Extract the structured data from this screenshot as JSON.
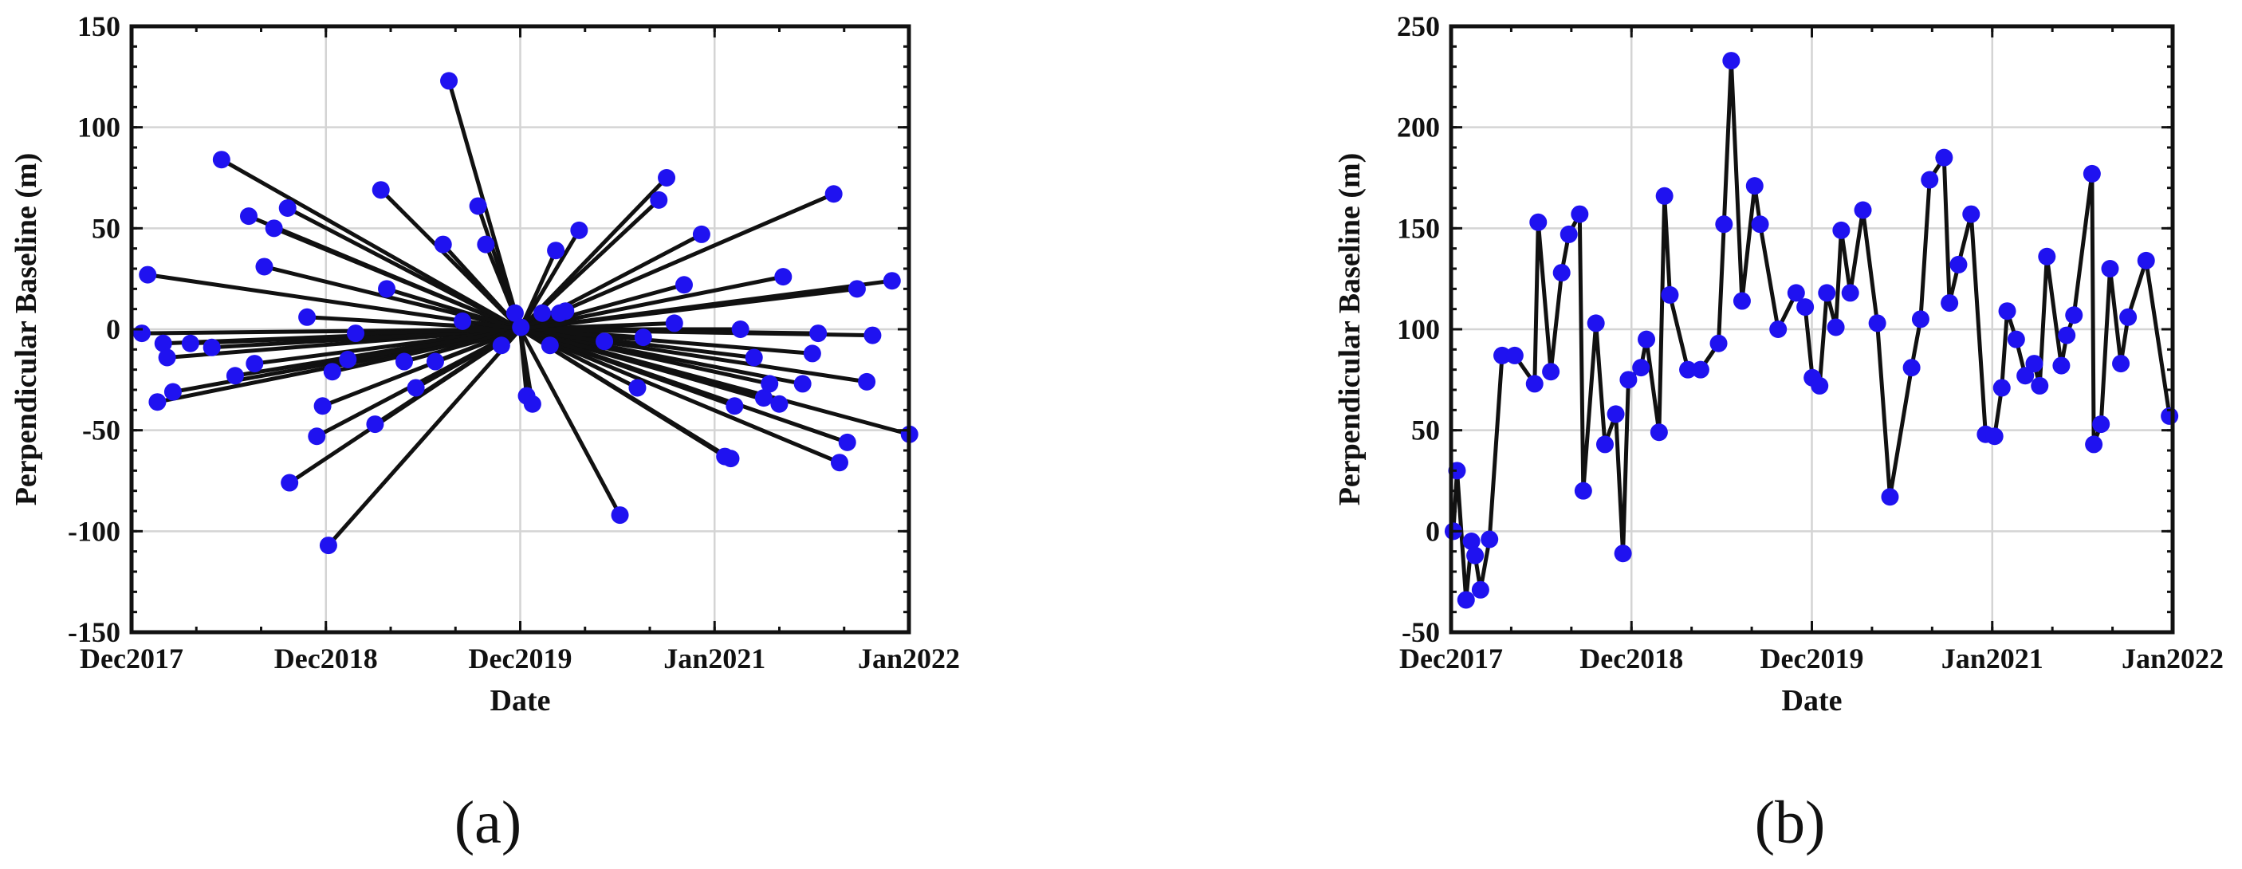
{
  "chart_data": [
    {
      "id": "a",
      "type": "line",
      "panel_label": "(a)",
      "title": "",
      "xlabel": "Date",
      "ylabel": "Perpendicular Baseline (m)",
      "xlim": [
        2017.917,
        2021.917
      ],
      "ylim": [
        -150,
        150
      ],
      "xticks": [
        {
          "value": 2017.917,
          "label": "Dec2017"
        },
        {
          "value": 2018.917,
          "label": "Dec2018"
        },
        {
          "value": 2019.917,
          "label": "Dec2019"
        },
        {
          "value": 2020.917,
          "label": "Jan2021"
        },
        {
          "value": 2021.917,
          "label": "Jan2022"
        }
      ],
      "yticks": [
        -150,
        -100,
        -50,
        0,
        50,
        100,
        150
      ],
      "grid": true,
      "master": {
        "x": 2019.917,
        "y": 0
      },
      "points": [
        [
          2017.97,
          -2
        ],
        [
          2018.0,
          27
        ],
        [
          2018.08,
          -7
        ],
        [
          2018.1,
          -14
        ],
        [
          2018.05,
          -36
        ],
        [
          2018.13,
          -31
        ],
        [
          2018.22,
          -7
        ],
        [
          2018.33,
          -9
        ],
        [
          2018.38,
          84
        ],
        [
          2018.45,
          -23
        ],
        [
          2018.52,
          56
        ],
        [
          2018.55,
          -17
        ],
        [
          2018.6,
          31
        ],
        [
          2018.65,
          50
        ],
        [
          2018.72,
          60
        ],
        [
          2018.73,
          -76
        ],
        [
          2018.82,
          6
        ],
        [
          2018.87,
          -53
        ],
        [
          2018.9,
          -38
        ],
        [
          2018.93,
          -107
        ],
        [
          2018.95,
          -21
        ],
        [
          2019.03,
          -15
        ],
        [
          2019.07,
          -2
        ],
        [
          2019.17,
          -47
        ],
        [
          2019.2,
          69
        ],
        [
          2019.23,
          20
        ],
        [
          2019.32,
          -16
        ],
        [
          2019.38,
          -29
        ],
        [
          2019.48,
          -16
        ],
        [
          2019.52,
          42
        ],
        [
          2019.55,
          123
        ],
        [
          2019.62,
          4
        ],
        [
          2019.7,
          61
        ],
        [
          2019.74,
          42
        ],
        [
          2019.82,
          -8
        ],
        [
          2019.89,
          8
        ],
        [
          2019.92,
          1
        ],
        [
          2019.95,
          -33
        ],
        [
          2019.98,
          -37
        ],
        [
          2020.03,
          8
        ],
        [
          2020.07,
          -8
        ],
        [
          2020.1,
          39
        ],
        [
          2020.12,
          8
        ],
        [
          2020.15,
          9
        ],
        [
          2020.22,
          49
        ],
        [
          2020.35,
          -6
        ],
        [
          2020.43,
          -92
        ],
        [
          2020.52,
          -29
        ],
        [
          2020.55,
          -4
        ],
        [
          2020.63,
          64
        ],
        [
          2020.67,
          75
        ],
        [
          2020.71,
          3
        ],
        [
          2020.76,
          22
        ],
        [
          2020.85,
          47
        ],
        [
          2020.97,
          -63
        ],
        [
          2021.0,
          -64
        ],
        [
          2021.02,
          -38
        ],
        [
          2021.05,
          0
        ],
        [
          2021.12,
          -14
        ],
        [
          2021.17,
          -34
        ],
        [
          2021.2,
          -27
        ],
        [
          2021.25,
          -37
        ],
        [
          2021.27,
          26
        ],
        [
          2021.37,
          -27
        ],
        [
          2021.42,
          -12
        ],
        [
          2021.45,
          -2
        ],
        [
          2021.53,
          67
        ],
        [
          2021.56,
          -66
        ],
        [
          2021.6,
          -56
        ],
        [
          2021.65,
          20
        ],
        [
          2021.7,
          -26
        ],
        [
          2021.73,
          -3
        ],
        [
          2021.83,
          24
        ],
        [
          2021.92,
          -52
        ]
      ]
    },
    {
      "id": "b",
      "type": "line",
      "panel_label": "(b)",
      "title": "",
      "xlabel": "Date",
      "ylabel": "Perpendicular Baseline (m)",
      "xlim": [
        2017.917,
        2021.917
      ],
      "ylim": [
        -50,
        250
      ],
      "xticks": [
        {
          "value": 2017.917,
          "label": "Dec2017"
        },
        {
          "value": 2018.917,
          "label": "Dec2018"
        },
        {
          "value": 2019.917,
          "label": "Dec2019"
        },
        {
          "value": 2020.917,
          "label": "Jan2021"
        },
        {
          "value": 2021.917,
          "label": "Jan2022"
        }
      ],
      "yticks": [
        -50,
        0,
        50,
        100,
        150,
        200,
        250
      ],
      "grid": true,
      "points": [
        [
          2017.93,
          0
        ],
        [
          2017.95,
          30
        ],
        [
          2018.0,
          -34
        ],
        [
          2018.03,
          -5
        ],
        [
          2018.05,
          -12
        ],
        [
          2018.08,
          -29
        ],
        [
          2018.13,
          -4
        ],
        [
          2018.2,
          87
        ],
        [
          2018.27,
          87
        ],
        [
          2018.38,
          73
        ],
        [
          2018.4,
          153
        ],
        [
          2018.47,
          79
        ],
        [
          2018.53,
          128
        ],
        [
          2018.57,
          147
        ],
        [
          2018.63,
          157
        ],
        [
          2018.65,
          20
        ],
        [
          2018.72,
          103
        ],
        [
          2018.77,
          43
        ],
        [
          2018.83,
          58
        ],
        [
          2018.87,
          -11
        ],
        [
          2018.9,
          75
        ],
        [
          2018.97,
          81
        ],
        [
          2019.0,
          95
        ],
        [
          2019.07,
          49
        ],
        [
          2019.1,
          166
        ],
        [
          2019.13,
          117
        ],
        [
          2019.23,
          80
        ],
        [
          2019.3,
          80
        ],
        [
          2019.4,
          93
        ],
        [
          2019.43,
          152
        ],
        [
          2019.47,
          233
        ],
        [
          2019.53,
          114
        ],
        [
          2019.6,
          171
        ],
        [
          2019.63,
          152
        ],
        [
          2019.73,
          100
        ],
        [
          2019.83,
          118
        ],
        [
          2019.88,
          111
        ],
        [
          2019.92,
          76
        ],
        [
          2019.96,
          72
        ],
        [
          2020.0,
          118
        ],
        [
          2020.05,
          101
        ],
        [
          2020.08,
          149
        ],
        [
          2020.13,
          118
        ],
        [
          2020.2,
          159
        ],
        [
          2020.28,
          103
        ],
        [
          2020.35,
          17
        ],
        [
          2020.47,
          81
        ],
        [
          2020.52,
          105
        ],
        [
          2020.57,
          174
        ],
        [
          2020.65,
          185
        ],
        [
          2020.68,
          113
        ],
        [
          2020.73,
          132
        ],
        [
          2020.8,
          157
        ],
        [
          2020.88,
          48
        ],
        [
          2020.93,
          47
        ],
        [
          2020.97,
          71
        ],
        [
          2021.0,
          109
        ],
        [
          2021.05,
          95
        ],
        [
          2021.1,
          77
        ],
        [
          2021.15,
          83
        ],
        [
          2021.18,
          72
        ],
        [
          2021.22,
          136
        ],
        [
          2021.3,
          82
        ],
        [
          2021.33,
          97
        ],
        [
          2021.37,
          107
        ],
        [
          2021.47,
          177
        ],
        [
          2021.48,
          43
        ],
        [
          2021.52,
          53
        ],
        [
          2021.57,
          130
        ],
        [
          2021.63,
          83
        ],
        [
          2021.67,
          106
        ],
        [
          2021.77,
          134
        ],
        [
          2021.9,
          57
        ]
      ]
    }
  ]
}
